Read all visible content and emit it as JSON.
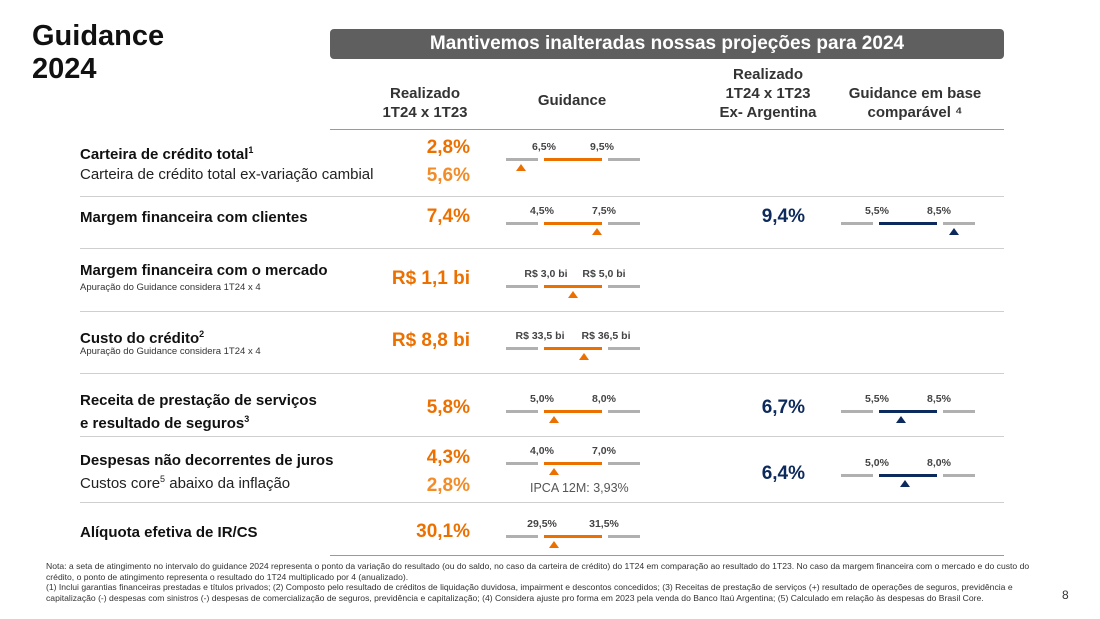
{
  "title": {
    "line1": "Guidance",
    "line2": "2024"
  },
  "banner": "Mantivemos inalteradas nossas projeções para 2024",
  "columns": {
    "realizado": [
      "Realizado",
      "1T24 x 1T23"
    ],
    "guidance": "Guidance",
    "realizado_ex": [
      "Realizado",
      "1T24 x 1T23",
      "Ex- Argentina"
    ],
    "guidance_base": [
      "Guidance em base",
      "comparável ⁴"
    ]
  },
  "rows": [
    {
      "label": "Carteira de crédito total",
      "sup": "1",
      "sub_label": "Carteira de crédito total ex-variação cambial",
      "value": "2,8%",
      "value2": "5,6%",
      "g_lo": "6,5%",
      "g_hi": "9,5%",
      "g_pos": 0.11
    },
    {
      "label": "Margem financeira com clientes",
      "value": "7,4%",
      "g_lo": "4,5%",
      "g_hi": "7,5%",
      "g_pos": 0.68,
      "ex_value": "9,4%",
      "b_lo": "5,5%",
      "b_hi": "8,5%",
      "b_pos": 0.84
    },
    {
      "label": "Margem financeira com o mercado",
      "note": "Apuração do Guidance considera 1T24 x 4",
      "value": "R$ 1,1 bi",
      "g_lo": "R$ 3,0 bi",
      "g_hi": "R$ 5,0 bi",
      "g_pos": 0.5
    },
    {
      "label": "Custo do crédito",
      "sup": "2",
      "note": "Apuração do Guidance considera 1T24 x 4",
      "value": "R$ 8,8 bi",
      "g_lo": "R$ 33,5 bi",
      "g_hi": "R$ 36,5 bi",
      "g_pos": 0.58
    },
    {
      "label": "Receita de prestação de serviços",
      "label2": "e resultado de seguros",
      "sup": "3",
      "value": "5,8%",
      "g_lo": "5,0%",
      "g_hi": "8,0%",
      "g_pos": 0.36,
      "ex_value": "6,7%",
      "b_lo": "5,5%",
      "b_hi": "8,5%",
      "b_pos": 0.45
    },
    {
      "label": "Despesas não decorrentes de juros",
      "sub_label_a": "Custos core",
      "sub_sup": "5",
      "sub_label_b": " abaixo da inflação",
      "value": "4,3%",
      "value2": "2,8%",
      "g_lo": "4,0%",
      "g_hi": "7,0%",
      "g_pos": 0.36,
      "ex_value": "6,4%",
      "b_lo": "5,0%",
      "b_hi": "8,0%",
      "b_pos": 0.48,
      "ipca": "IPCA 12M: 3,93%"
    },
    {
      "label": "Alíquota efetiva de IR/CS",
      "value": "30,1%",
      "g_lo": "29,5%",
      "g_hi": "31,5%",
      "g_pos": 0.36
    }
  ],
  "footnote": "Nota: a seta de atingimento no intervalo do guidance 2024 representa o ponto da variação do resultado (ou do saldo, no caso da carteira de crédito) do 1T24 em comparação ao resultado do 1T23. No caso da margem financeira com o mercado e do custo do crédito, o ponto de atingimento representa o resultado do 1T24 multiplicado por 4 (anualizado).\n(1) Inclui garantias financeiras prestadas e títulos privados; (2) Composto pelo resultado de créditos de liquidação duvidosa, impairment e descontos concedidos; (3) Receitas de prestação de serviços (+) resultado de operações de seguros, previdência e capitalização (-) despesas com sinistros (-) despesas de comercialização de seguros, previdência e capitalização; (4) Considera ajuste pro forma em 2023 pela venda do Banco Itaú Argentina; (5) Calculado em relação às despesas do Brasil Core.",
  "page_number": "8",
  "colors": {
    "orange": "#ec7000",
    "navy": "#0d2a5c",
    "gray": "#5f5f5f"
  }
}
